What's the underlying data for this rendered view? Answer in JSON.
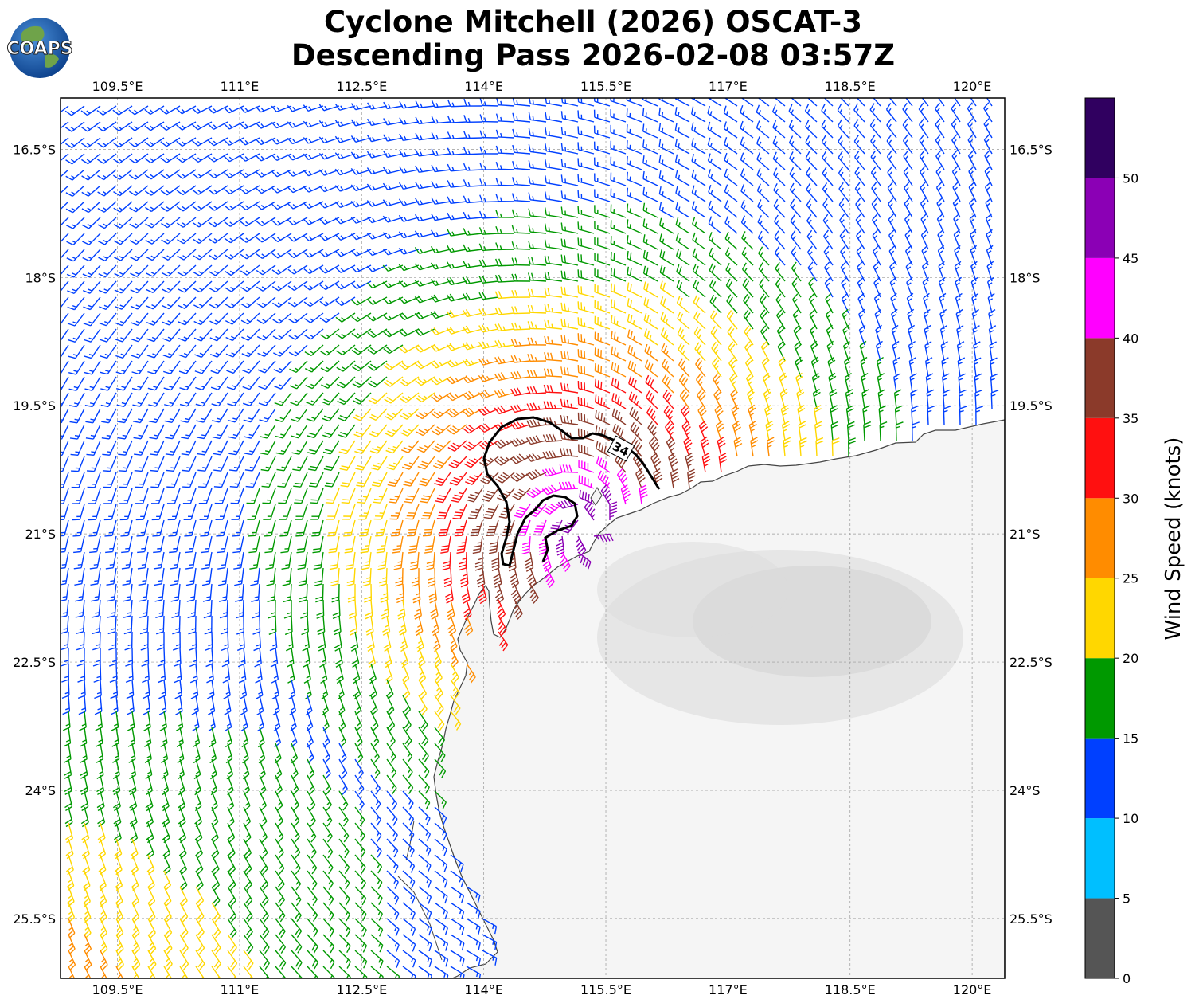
{
  "logo": {
    "text": "COAPS"
  },
  "title": {
    "line1": "Cyclone Mitchell (2026) OSCAT-3",
    "line2": "Descending Pass 2026-02-08 03:57Z"
  },
  "colorbar": {
    "label": "Wind Speed (knots)",
    "ticks": [
      "0",
      "5",
      "10",
      "15",
      "20",
      "25",
      "30",
      "35",
      "40",
      "45",
      "50"
    ]
  },
  "contour": {
    "label": "34"
  },
  "chart_data": {
    "type": "wind-barbs-map",
    "title": "Cyclone Mitchell (2026) OSCAT-3 Descending Pass 2026-02-08 03:57Z",
    "x_ticks": [
      "109.5°E",
      "111°E",
      "112.5°E",
      "114°E",
      "115.5°E",
      "117°E",
      "118.5°E",
      "120°E"
    ],
    "y_ticks": [
      "16.5°S",
      "18°S",
      "19.5°S",
      "21°S",
      "22.5°S",
      "24°S",
      "25.5°S"
    ],
    "xlim": [
      108.8,
      120.4
    ],
    "ylim": [
      -26.2,
      -15.9
    ],
    "grid": true,
    "colorbar": {
      "label": "Wind Speed (knots)",
      "bins": [
        {
          "min": 0,
          "max": 5,
          "color": "#555555"
        },
        {
          "min": 5,
          "max": 10,
          "color": "#00bfff"
        },
        {
          "min": 10,
          "max": 15,
          "color": "#0040ff"
        },
        {
          "min": 15,
          "max": 20,
          "color": "#009900"
        },
        {
          "min": 20,
          "max": 25,
          "color": "#ffd700"
        },
        {
          "min": 25,
          "max": 30,
          "color": "#ff8c00"
        },
        {
          "min": 30,
          "max": 35,
          "color": "#ff1010"
        },
        {
          "min": 35,
          "max": 40,
          "color": "#8b3a2a"
        },
        {
          "min": 40,
          "max": 45,
          "color": "#ff00ff"
        },
        {
          "min": 45,
          "max": 50,
          "color": "#8b00b5"
        },
        {
          "min": 50,
          "max": 55,
          "color": "#300060"
        }
      ]
    },
    "storm_center": {
      "lon": 115.3,
      "lat": -20.9
    },
    "contour_34kt_label": "34"
  }
}
